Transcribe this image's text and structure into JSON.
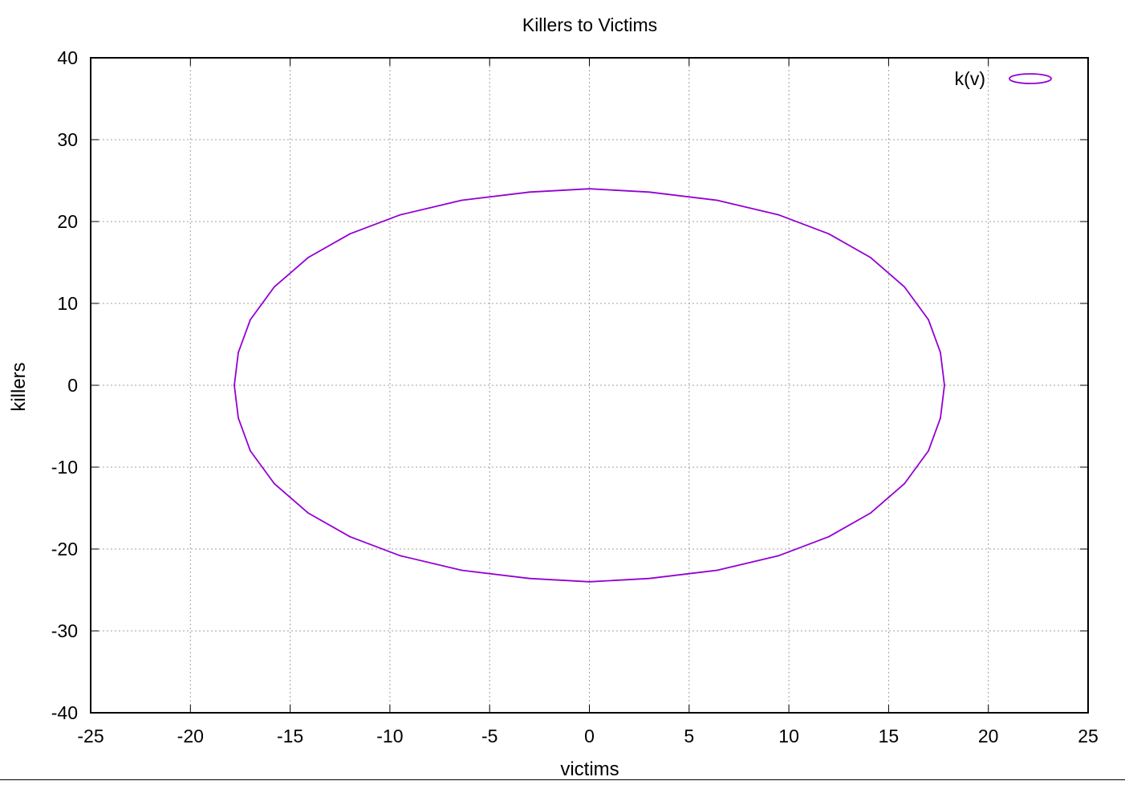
{
  "chart_data": {
    "type": "line",
    "title": "Killers to Victims",
    "xlabel": "victims",
    "ylabel": "killers",
    "xlim": [
      -25,
      25
    ],
    "ylim": [
      -40,
      40
    ],
    "xticks": [
      -25,
      -20,
      -15,
      -10,
      -5,
      0,
      5,
      10,
      15,
      20,
      25
    ],
    "xtick_labels": [
      "-25",
      "-20",
      "-15",
      "-10",
      "-5",
      "0",
      "5",
      "10",
      "15",
      "20",
      "25"
    ],
    "yticks": [
      -40,
      -30,
      -20,
      -10,
      0,
      10,
      20,
      30,
      40
    ],
    "ytick_labels": [
      "-40",
      "-30",
      "-20",
      "-10",
      "0",
      "10",
      "20",
      "30",
      "40"
    ],
    "grid": true,
    "legend_position": "top-right",
    "series": [
      {
        "name": "k(v)",
        "color": "#9400d3",
        "x": [
          17.8,
          17.6,
          17.0,
          15.8,
          14.1,
          12.0,
          9.5,
          6.4,
          3.0,
          0.0,
          -3.0,
          -6.4,
          -9.5,
          -12.0,
          -14.1,
          -15.8,
          -17.0,
          -17.6,
          -17.8,
          -17.6,
          -17.0,
          -15.8,
          -14.1,
          -12.0,
          -9.5,
          -6.4,
          -3.0,
          0.0,
          3.0,
          6.4,
          9.5,
          12.0,
          14.1,
          15.8,
          17.0,
          17.6,
          17.8
        ],
        "y": [
          0.0,
          4.0,
          8.0,
          12.0,
          15.6,
          18.5,
          20.8,
          22.6,
          23.6,
          24.0,
          23.6,
          22.6,
          20.8,
          18.5,
          15.6,
          12.0,
          8.0,
          4.0,
          0.0,
          -4.0,
          -8.0,
          -12.0,
          -15.6,
          -18.5,
          -20.8,
          -22.6,
          -23.6,
          -24.0,
          -23.6,
          -22.6,
          -20.8,
          -18.5,
          -15.6,
          -12.0,
          -8.0,
          -4.0,
          0.0
        ]
      }
    ]
  }
}
